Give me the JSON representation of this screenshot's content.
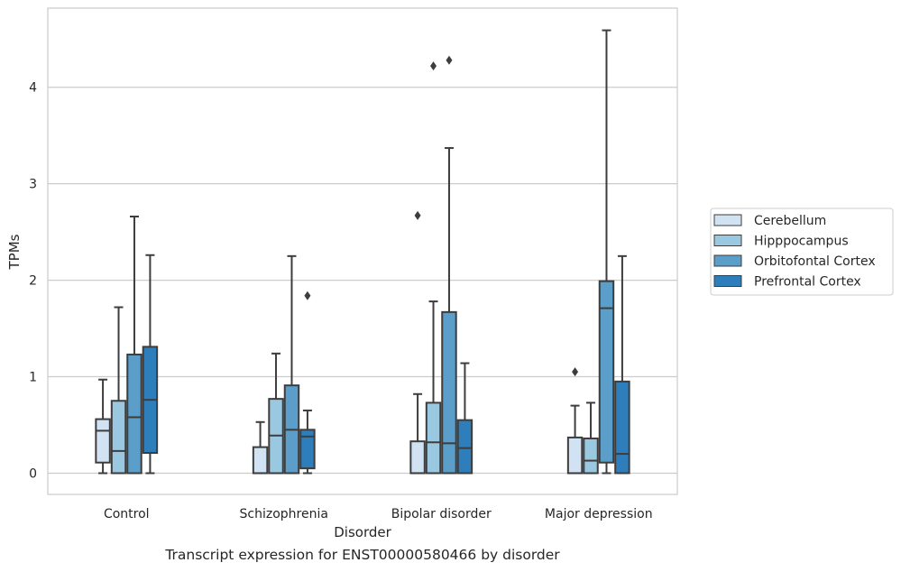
{
  "caption": "Transcript expression for ENST00000580466 by disorder",
  "chart_data": {
    "type": "boxplot",
    "xlabel": "Disorder",
    "ylabel": "TPMs",
    "categories": [
      "Control",
      "Schizophrenia",
      "Bipolar disorder",
      "Major depression"
    ],
    "ylim": [
      -0.22,
      4.82
    ],
    "yticks": [
      0,
      1,
      2,
      3,
      4
    ],
    "grid": "horizontal",
    "legend_position": "right",
    "series": [
      {
        "name": "Cerebellum",
        "color": "#d1e3f3",
        "boxes": [
          {
            "min": 0.0,
            "q1": 0.11,
            "median": 0.44,
            "q3": 0.56,
            "max": 0.97,
            "outliers": []
          },
          {
            "min": 0.0,
            "q1": 0.0,
            "median": 0.0,
            "q3": 0.27,
            "max": 0.53,
            "outliers": []
          },
          {
            "min": 0.0,
            "q1": 0.0,
            "median": 0.0,
            "q3": 0.33,
            "max": 0.82,
            "outliers": [
              2.67
            ]
          },
          {
            "min": 0.0,
            "q1": 0.0,
            "median": 0.0,
            "q3": 0.37,
            "max": 0.7,
            "outliers": [
              1.05
            ]
          }
        ]
      },
      {
        "name": "Hipppocampus",
        "color": "#9ac8e0",
        "boxes": [
          {
            "min": 0.0,
            "q1": 0.0,
            "median": 0.23,
            "q3": 0.75,
            "max": 1.72,
            "outliers": []
          },
          {
            "min": 0.0,
            "q1": 0.0,
            "median": 0.39,
            "q3": 0.77,
            "max": 1.24,
            "outliers": []
          },
          {
            "min": 0.0,
            "q1": 0.0,
            "median": 0.32,
            "q3": 0.73,
            "max": 1.78,
            "outliers": [
              4.22
            ]
          },
          {
            "min": 0.0,
            "q1": 0.0,
            "median": 0.13,
            "q3": 0.36,
            "max": 0.73,
            "outliers": []
          }
        ]
      },
      {
        "name": "Orbitofontal Cortex",
        "color": "#5a9ec9",
        "boxes": [
          {
            "min": 0.0,
            "q1": 0.0,
            "median": 0.58,
            "q3": 1.23,
            "max": 2.66,
            "outliers": []
          },
          {
            "min": 0.0,
            "q1": 0.0,
            "median": 0.45,
            "q3": 0.91,
            "max": 2.25,
            "outliers": []
          },
          {
            "min": 0.0,
            "q1": 0.0,
            "median": 0.31,
            "q3": 1.67,
            "max": 3.37,
            "outliers": [
              4.28
            ]
          },
          {
            "min": 0.0,
            "q1": 0.11,
            "median": 1.71,
            "q3": 1.99,
            "max": 4.59,
            "outliers": []
          }
        ]
      },
      {
        "name": "Prefrontal Cortex",
        "color": "#2e7ebc",
        "boxes": [
          {
            "min": 0.0,
            "q1": 0.21,
            "median": 0.76,
            "q3": 1.31,
            "max": 2.26,
            "outliers": []
          },
          {
            "min": 0.0,
            "q1": 0.05,
            "median": 0.38,
            "q3": 0.45,
            "max": 0.65,
            "outliers": [
              1.84
            ]
          },
          {
            "min": 0.0,
            "q1": 0.0,
            "median": 0.26,
            "q3": 0.55,
            "max": 1.14,
            "outliers": []
          },
          {
            "min": 0.0,
            "q1": 0.0,
            "median": 0.2,
            "q3": 0.95,
            "max": 2.25,
            "outliers": []
          }
        ]
      }
    ]
  }
}
